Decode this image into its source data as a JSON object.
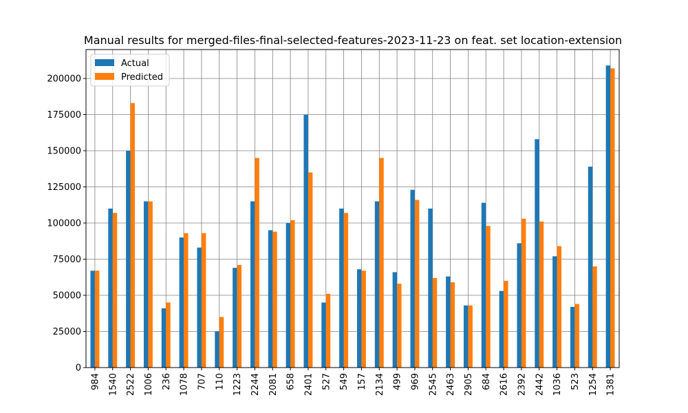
{
  "chart_data": {
    "type": "bar",
    "title": "Manual results for merged-files-final-selected-features-2023-11-23 on feat. set location-extension",
    "xlabel": "",
    "ylabel": "",
    "ylim": [
      0,
      220000
    ],
    "yticks": [
      0,
      25000,
      50000,
      75000,
      100000,
      125000,
      150000,
      175000,
      200000
    ],
    "grid": true,
    "legend_position": "top-left",
    "categories": [
      "984",
      "1540",
      "2522",
      "1006",
      "236",
      "1078",
      "707",
      "110",
      "1223",
      "2244",
      "2081",
      "658",
      "2401",
      "527",
      "549",
      "157",
      "2134",
      "499",
      "969",
      "2545",
      "2463",
      "2905",
      "684",
      "2616",
      "2392",
      "2442",
      "1036",
      "523",
      "1254",
      "1381"
    ],
    "series": [
      {
        "name": "Actual",
        "color": "#1f77b4",
        "values": [
          67000,
          110000,
          150000,
          115000,
          41000,
          90000,
          83000,
          25000,
          69000,
          115000,
          95000,
          100000,
          175000,
          45000,
          110000,
          68000,
          115000,
          66000,
          123000,
          110000,
          63000,
          43000,
          114000,
          53000,
          86000,
          158000,
          77000,
          42000,
          139000,
          209000
        ]
      },
      {
        "name": "Predicted",
        "color": "#ff7f0e",
        "values": [
          67000,
          107000,
          183000,
          115000,
          45000,
          93000,
          93000,
          35000,
          71000,
          145000,
          94000,
          102000,
          135000,
          51000,
          107000,
          67000,
          145000,
          58000,
          116000,
          62000,
          59000,
          43000,
          98000,
          60000,
          103000,
          101000,
          84000,
          44000,
          70000,
          207000
        ]
      }
    ]
  }
}
